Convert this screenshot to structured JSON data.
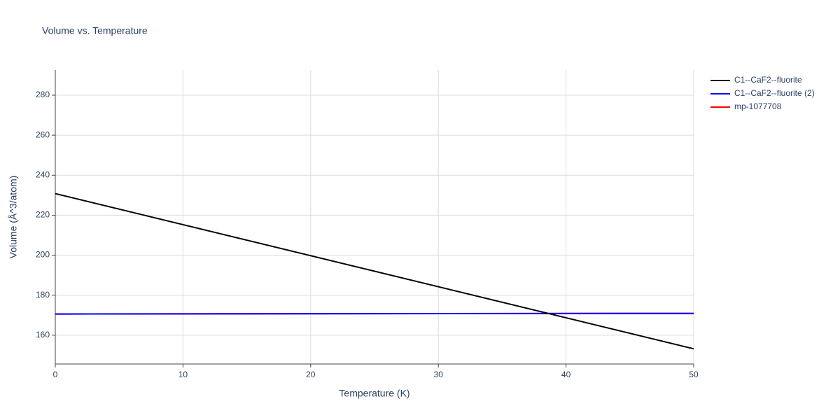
{
  "chart_data": {
    "type": "line",
    "title": "Volume vs. Temperature",
    "x_label": "Temperature (K)",
    "y_label": "Volume (Å^3/atom)",
    "x": [
      0,
      50
    ],
    "series": [
      {
        "name": "C1--CaF2--fluorite",
        "color": "#000000",
        "values": [
          230.8,
          153.2
        ]
      },
      {
        "name": "C1--CaF2--fluorite (2)",
        "color": "#0000ff",
        "values": [
          170.6,
          170.9
        ]
      },
      {
        "name": "mp-1077708",
        "color": "#ff0000",
        "values": [
          170.6,
          170.9
        ]
      }
    ],
    "xlim": [
      0,
      50
    ],
    "xticks": [
      0,
      10,
      20,
      30,
      40,
      50
    ],
    "ylim": [
      145.6,
      292.6
    ],
    "yticks": [
      160,
      180,
      200,
      220,
      240,
      260,
      280
    ],
    "grid": true,
    "legend": "right"
  }
}
